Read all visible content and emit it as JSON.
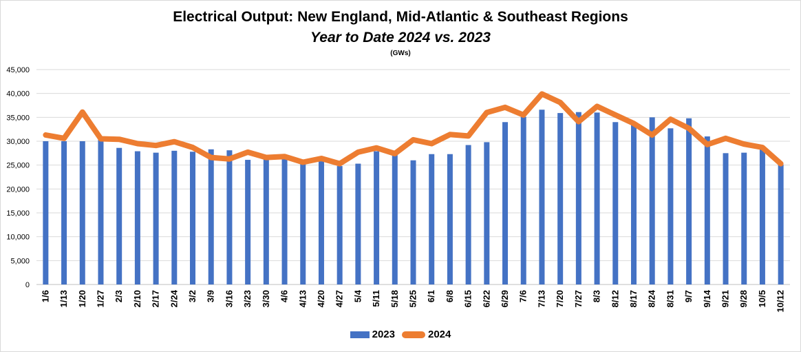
{
  "chart_data": {
    "type": "bar",
    "title": "Electrical Output:  New England, Mid-Atlantic & Southeast Regions",
    "subtitle": "Year to Date 2024 vs. 2023",
    "units": "(GWs)",
    "categories": [
      "1/6",
      "1/13",
      "1/20",
      "1/27",
      "2/3",
      "2/10",
      "2/17",
      "2/24",
      "3/2",
      "3/9",
      "3/16",
      "3/23",
      "3/30",
      "4/6",
      "4/13",
      "4/20",
      "4/27",
      "5/4",
      "5/11",
      "5/18",
      "5/25",
      "6/1",
      "6/8",
      "6/15",
      "6/22",
      "6/29",
      "7/6",
      "7/13",
      "7/20",
      "7/27",
      "8/3",
      "8/12",
      "8/17",
      "8/24",
      "8/31",
      "9/7",
      "9/14",
      "9/21",
      "9/28",
      "10/5",
      "10/12"
    ],
    "series": [
      {
        "name": "2023",
        "type": "bar",
        "color": "#4472c4",
        "values": [
          30000,
          30000,
          30000,
          30300,
          28600,
          27900,
          27600,
          28000,
          27800,
          28300,
          28100,
          26100,
          26600,
          26300,
          25300,
          25800,
          24800,
          25300,
          27900,
          27300,
          26000,
          27300,
          27300,
          29200,
          29800,
          34000,
          35100,
          36600,
          35900,
          36100,
          36000,
          34000,
          33500,
          35000,
          32700,
          34800,
          31000,
          27500,
          27600,
          28300,
          25100
        ]
      },
      {
        "name": "2024",
        "type": "line",
        "color": "#ed7d31",
        "values": [
          31300,
          30600,
          36100,
          30500,
          30400,
          29500,
          29100,
          29900,
          28700,
          26600,
          26300,
          27700,
          26600,
          26800,
          25600,
          26400,
          25300,
          27700,
          28600,
          27400,
          30300,
          29500,
          31400,
          31100,
          36000,
          37100,
          35500,
          39900,
          38100,
          34100,
          37300,
          35500,
          33700,
          31300,
          34600,
          32700,
          29300,
          30600,
          29400,
          28700,
          25300
        ]
      }
    ],
    "ylim": [
      0,
      45000
    ],
    "yticks": [
      0,
      5000,
      10000,
      15000,
      20000,
      25000,
      30000,
      35000,
      40000,
      45000
    ],
    "ytick_labels": [
      "0",
      "5,000",
      "10,000",
      "15,000",
      "20,000",
      "25,000",
      "30,000",
      "35,000",
      "40,000",
      "45,000"
    ],
    "grid": true,
    "legend_position": "bottom"
  }
}
